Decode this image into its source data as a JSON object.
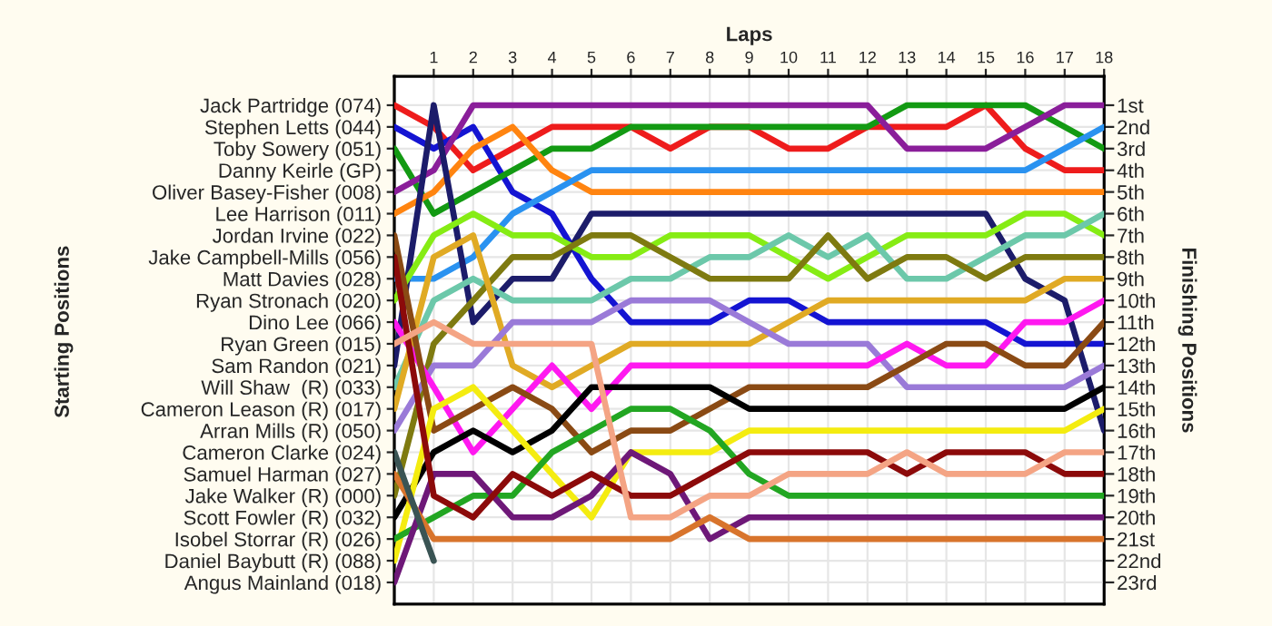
{
  "chart_data": {
    "type": "line",
    "xlabel": "Laps",
    "annotations": [
      "Starting Positions"
    ],
    "y2label": "Finishing Positions",
    "x": [
      0,
      1,
      2,
      3,
      4,
      5,
      6,
      7,
      8,
      9,
      10,
      11,
      12,
      13,
      14,
      15,
      16,
      17,
      18
    ],
    "xlim": [
      0,
      18
    ],
    "xticks": [
      1,
      2,
      3,
      4,
      5,
      6,
      7,
      8,
      9,
      10,
      11,
      12,
      13,
      14,
      15,
      16,
      17,
      18
    ],
    "y_categories": [
      "Jack Partridge (074)",
      "Stephen Letts (044)",
      "Toby Sowery (051)",
      "Danny Keirle (GP)",
      "Oliver Basey-Fisher (008)",
      "Lee Harrison (011)",
      "Jordan Irvine (022)",
      "Jake Campbell-Mills (056)",
      "Matt Davies (028)",
      "Ryan Stronach (020)",
      "Dino Lee (066)",
      "Ryan Green (015)",
      "Sam Randon (021)",
      "Will Shaw  (R) (033)",
      "Cameron Leason (R) (017)",
      "Arran Mills (R) (050)",
      "Cameron Clarke (024)",
      "Samuel Harman (027)",
      "Jake Walker (R) (000)",
      "Scott Fowler (R) (032)",
      "Isobel Storrar (R) (026)",
      "Daniel Baybutt (R) (088)",
      "Angus Mainland (018)"
    ],
    "y2lim": [
      24,
      -0.33
    ],
    "y2ticks": [
      {
        "value": 1,
        "label": "1st"
      },
      {
        "value": 2,
        "label": "2nd"
      },
      {
        "value": 3,
        "label": "3rd"
      },
      {
        "value": 4,
        "label": "4th"
      },
      {
        "value": 5,
        "label": "5th"
      },
      {
        "value": 6,
        "label": "6th"
      },
      {
        "value": 7,
        "label": "7th"
      },
      {
        "value": 8,
        "label": "8th"
      },
      {
        "value": 9,
        "label": "9th"
      },
      {
        "value": 10,
        "label": "10th"
      },
      {
        "value": 11,
        "label": "11th"
      },
      {
        "value": 12,
        "label": "12th"
      },
      {
        "value": 13,
        "label": "13th"
      },
      {
        "value": 14,
        "label": "14th"
      },
      {
        "value": 15,
        "label": "15th"
      },
      {
        "value": 16,
        "label": "16th"
      },
      {
        "value": 17,
        "label": "17th"
      },
      {
        "value": 18,
        "label": "18th"
      },
      {
        "value": 19,
        "label": "19th"
      },
      {
        "value": 20,
        "label": "20th"
      },
      {
        "value": 21,
        "label": "21st"
      },
      {
        "value": 22,
        "label": "22nd"
      },
      {
        "value": 23,
        "label": "23rd"
      }
    ],
    "grid": true,
    "line_style": "solid",
    "marker": "none",
    "series": [
      {
        "axis": "y2",
        "color": "#ee1c1c",
        "values": [
          1,
          2,
          4,
          3,
          2,
          2,
          2,
          3,
          2,
          2,
          3,
          3,
          2,
          2,
          2,
          1,
          3,
          4,
          4
        ]
      },
      {
        "axis": "y2",
        "color": "#1414d2",
        "values": [
          2,
          3,
          2,
          5,
          6,
          9,
          11,
          11,
          11,
          10,
          10,
          11,
          11,
          11,
          11,
          11,
          12,
          12,
          12
        ]
      },
      {
        "axis": "y2",
        "color": "#139a13",
        "values": [
          3,
          6,
          5,
          4,
          3,
          3,
          2,
          2,
          2,
          2,
          2,
          2,
          2,
          1,
          1,
          1,
          1,
          2,
          3
        ]
      },
      {
        "axis": "y2",
        "color": "#8a1e9a",
        "values": [
          5,
          4,
          1,
          1,
          1,
          1,
          1,
          1,
          1,
          1,
          1,
          1,
          1,
          3,
          3,
          3,
          2,
          1,
          1
        ]
      },
      {
        "axis": "y2",
        "color": "#ff8410",
        "values": [
          6,
          5,
          3,
          2,
          4,
          5,
          5,
          5,
          5,
          5,
          5,
          5,
          5,
          5,
          5,
          5,
          5,
          5,
          5
        ]
      },
      {
        "axis": "y2",
        "color": "#2a92f0",
        "values": [
          9,
          9,
          8,
          6,
          5,
          4,
          4,
          4,
          4,
          4,
          4,
          4,
          4,
          4,
          4,
          4,
          4,
          3,
          2
        ]
      },
      {
        "axis": "y2",
        "color": "#1c1c6a",
        "values": [
          13,
          1,
          11,
          9,
          9,
          6,
          6,
          6,
          6,
          6,
          6,
          6,
          6,
          6,
          6,
          6,
          9,
          10,
          16
        ]
      },
      {
        "axis": "y2",
        "color": "#86ec14",
        "values": [
          10,
          7,
          6,
          7,
          7,
          8,
          8,
          7,
          7,
          7,
          8,
          9,
          8,
          7,
          7,
          7,
          6,
          6,
          7
        ]
      },
      {
        "axis": "y2",
        "color": "#6cc8aa",
        "values": [
          14,
          10,
          9,
          10,
          10,
          10,
          9,
          9,
          8,
          8,
          7,
          8,
          7,
          9,
          9,
          8,
          7,
          7,
          6
        ]
      },
      {
        "axis": "y2",
        "color": "#7e7a10",
        "values": [
          19,
          12,
          10,
          8,
          8,
          7,
          7,
          8,
          9,
          9,
          9,
          7,
          9,
          8,
          8,
          9,
          8,
          8,
          8
        ]
      },
      {
        "axis": "y2",
        "color": "#e0aa24",
        "values": [
          15,
          8,
          7,
          13,
          14,
          13,
          12,
          12,
          12,
          12,
          11,
          10,
          10,
          10,
          10,
          10,
          10,
          9,
          9
        ]
      },
      {
        "axis": "y2",
        "color": "#9a7ad8",
        "values": [
          16,
          13,
          13,
          11,
          11,
          11,
          10,
          10,
          10,
          11,
          12,
          12,
          12,
          14,
          14,
          14,
          14,
          14,
          13
        ]
      },
      {
        "axis": "y2",
        "color": "#ff18f0",
        "values": [
          11,
          14,
          17,
          15,
          13,
          15,
          13,
          13,
          13,
          13,
          13,
          13,
          13,
          12,
          13,
          13,
          11,
          11,
          10
        ]
      },
      {
        "axis": "y2",
        "color": "#8a4a14",
        "values": [
          7,
          16,
          15,
          14,
          15,
          17,
          16,
          16,
          15,
          14,
          14,
          14,
          14,
          13,
          12,
          12,
          13,
          13,
          11
        ]
      },
      {
        "axis": "y2",
        "color": "#000000",
        "values": [
          20,
          17,
          16,
          17,
          16,
          14,
          14,
          14,
          14,
          15,
          15,
          15,
          15,
          15,
          15,
          15,
          15,
          15,
          14
        ]
      },
      {
        "axis": "y2",
        "color": "#f4ec10",
        "values": [
          22,
          15,
          14,
          16,
          18,
          20,
          17,
          17,
          17,
          16,
          16,
          16,
          16,
          16,
          16,
          16,
          16,
          16,
          15
        ]
      },
      {
        "axis": "y2",
        "color": "#22a622",
        "values": [
          21,
          20,
          19,
          19,
          17,
          16,
          15,
          15,
          16,
          18,
          19,
          19,
          19,
          19,
          19,
          19,
          19,
          19,
          19
        ]
      },
      {
        "axis": "y2",
        "color": "#6e1878",
        "values": [
          23,
          18,
          18,
          20,
          20,
          19,
          17,
          18,
          21,
          20,
          20,
          20,
          20,
          20,
          20,
          20,
          20,
          20,
          20
        ]
      },
      {
        "axis": "y2",
        "color": "#8c0a0a",
        "values": [
          8,
          19,
          20,
          18,
          19,
          18,
          19,
          19,
          18,
          17,
          17,
          17,
          17,
          18,
          17,
          17,
          17,
          18,
          18
        ]
      },
      {
        "axis": "y2",
        "color": "#f4a484",
        "values": [
          12,
          11,
          12,
          12,
          12,
          12,
          20,
          20,
          19,
          19,
          18,
          18,
          18,
          17,
          18,
          18,
          18,
          17,
          17
        ]
      },
      {
        "axis": "y2",
        "color": "#d8742c",
        "values": [
          18,
          21,
          21,
          21,
          21,
          21,
          21,
          21,
          20,
          21,
          21,
          21,
          21,
          21,
          21,
          21,
          21,
          21,
          21
        ]
      },
      {
        "axis": "y2",
        "color": "#3a5454",
        "values": [
          17,
          22,
          null,
          null,
          null,
          null,
          null,
          null,
          null,
          null,
          null,
          null,
          null,
          null,
          null,
          null,
          null,
          null,
          null
        ]
      }
    ]
  }
}
